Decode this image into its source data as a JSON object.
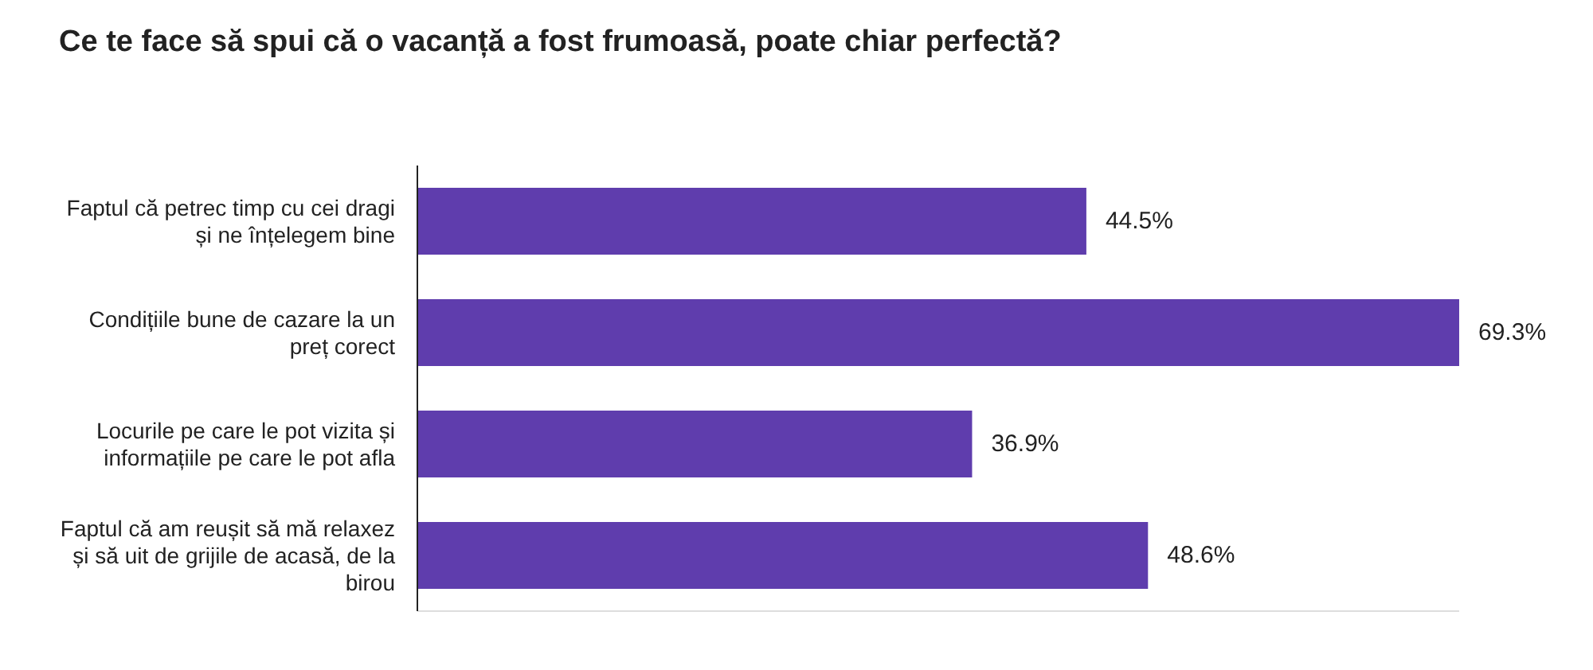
{
  "chart_data": {
    "type": "bar",
    "orientation": "horizontal",
    "title": "Ce te face să spui că o vacanță a fost frumoasă, poate chiar perfectă?",
    "categories": [
      "Faptul că petrec timp cu cei dragi și ne înțelegem bine",
      "Condițiile bune de cazare la un preț corect",
      "Locurile pe care le pot vizita și informațiile pe care le pot afla",
      "Faptul că am reușit să mă relaxez și să uit de grijile de acasă, de la birou"
    ],
    "values": [
      44.5,
      69.3,
      36.9,
      48.6
    ],
    "value_labels": [
      "44.5%",
      "69.3%",
      "36.9%",
      "48.6%"
    ],
    "color": "#5f3dad",
    "tick_labels": "y"
  }
}
